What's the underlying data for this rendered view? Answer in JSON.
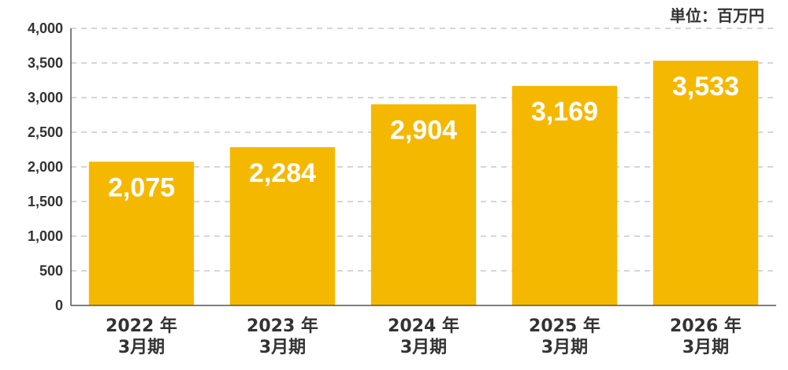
{
  "unit_label": "単位：百万円",
  "chart_data": {
    "type": "bar",
    "categories": [
      [
        "2022 年",
        "3月期"
      ],
      [
        "2023 年",
        "3月期"
      ],
      [
        "2024 年",
        "3月期"
      ],
      [
        "2025 年",
        "3月期"
      ],
      [
        "2026 年",
        "3月期"
      ]
    ],
    "values": [
      2075,
      2284,
      2904,
      3169,
      3533
    ],
    "data_labels": [
      "2,075",
      "2,284",
      "2,904",
      "3,169",
      "3,533"
    ],
    "yticks": [
      0,
      500,
      1000,
      1500,
      2000,
      2500,
      3000,
      3500,
      4000
    ],
    "ytick_labels": [
      "0",
      "500",
      "1,000",
      "1,500",
      "2,000",
      "2,500",
      "3,000",
      "3,500",
      "4,000"
    ],
    "ylim": [
      0,
      4000
    ],
    "grid": true,
    "bar_color": "#F5B800"
  }
}
